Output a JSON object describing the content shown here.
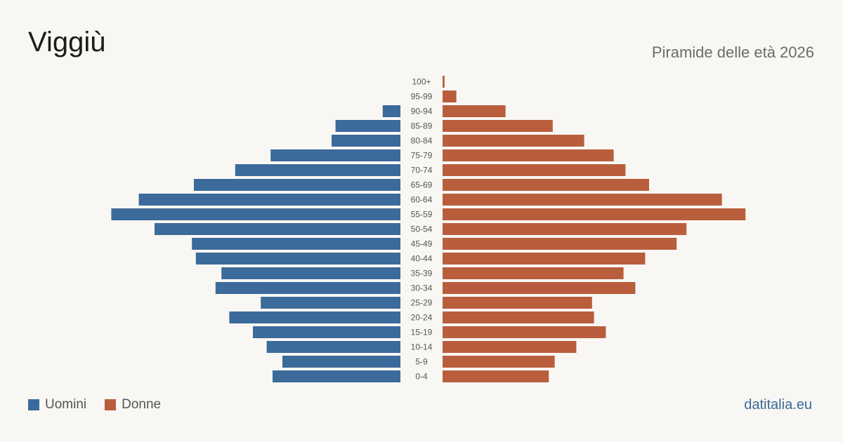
{
  "header": {
    "title": "Viggiù",
    "subtitle": "Piramide delle età 2026"
  },
  "legend": {
    "men_label": "Uomini",
    "women_label": "Donne"
  },
  "footer": {
    "source": "datitalia.eu"
  },
  "colors": {
    "men": "#3b6a9b",
    "women": "#b95e3c"
  },
  "chart_data": {
    "type": "bar",
    "orientation": "horizontal-pyramid",
    "categories": [
      "100+",
      "95-99",
      "90-94",
      "85-89",
      "80-84",
      "75-79",
      "70-74",
      "65-69",
      "60-64",
      "55-59",
      "50-54",
      "45-49",
      "40-44",
      "35-39",
      "30-34",
      "25-29",
      "20-24",
      "15-19",
      "10-14",
      "5-9",
      "0-4"
    ],
    "series": [
      {
        "name": "Uomini",
        "values": [
          0,
          0,
          9,
          33,
          35,
          66,
          84,
          105,
          133,
          147,
          125,
          106,
          104,
          91,
          94,
          71,
          87,
          75,
          68,
          60,
          65
        ]
      },
      {
        "name": "Donne",
        "values": [
          1,
          7,
          32,
          56,
          72,
          87,
          93,
          105,
          142,
          154,
          124,
          119,
          103,
          92,
          98,
          76,
          77,
          83,
          68,
          57,
          54
        ]
      }
    ],
    "grid": false,
    "legend_position": "bottom-left"
  }
}
